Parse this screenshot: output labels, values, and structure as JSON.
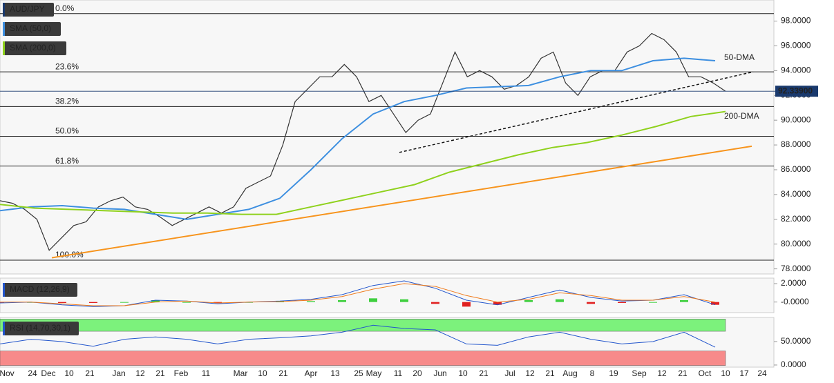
{
  "chart_data": {
    "type": "line",
    "legend": [
      "AUD/JPY",
      "SMA (50,0)",
      "SMA (200,0)"
    ],
    "ylim": [
      77.7,
      99.7
    ],
    "yticks": [
      {
        "value": 98,
        "label": "98.0000"
      },
      {
        "value": 96,
        "label": "96.0000"
      },
      {
        "value": 94,
        "label": "94.0000"
      },
      {
        "value": 92,
        "label": "92.0000"
      },
      {
        "value": 90,
        "label": "90.0000"
      },
      {
        "value": 88,
        "label": "88.0000"
      },
      {
        "value": 86,
        "label": "86.0000"
      },
      {
        "value": 84,
        "label": "84.0000"
      },
      {
        "value": 82,
        "label": "82.0000"
      },
      {
        "value": 80,
        "label": "80.0000"
      },
      {
        "value": 78,
        "label": "78.0000"
      }
    ],
    "xticks": [
      "Nov",
      "24",
      "Dec",
      "10",
      "21",
      "Jan",
      "12",
      "21",
      "Feb",
      "11",
      "Mar",
      "10",
      "21",
      "Apr",
      "13",
      "25",
      "May",
      "11",
      "20",
      "Jun",
      "10",
      "21",
      "Jul",
      "12",
      "21",
      "Aug",
      "8",
      "19",
      "Sep",
      "12",
      "21",
      "Oct",
      "10",
      "17",
      "24"
    ],
    "series": [
      {
        "name": "AUD/JPY",
        "color": "#333333",
        "values": [
          83.5,
          83.3,
          82.8,
          82.0,
          79.5,
          80.5,
          81.5,
          81.8,
          83.0,
          83.5,
          83.8,
          83.0,
          82.8,
          82.2,
          81.5,
          82.0,
          82.5,
          83.0,
          82.5,
          83.0,
          84.5,
          85.0,
          85.5,
          88.0,
          91.5,
          92.5,
          93.5,
          93.5,
          94.5,
          93.5,
          91.5,
          92.0,
          90.5,
          89.0,
          90.0,
          90.5,
          93.0,
          95.5,
          93.5,
          94.0,
          93.5,
          92.5,
          92.8,
          93.5,
          95.0,
          95.5,
          93.0,
          92.0,
          93.5,
          94.0,
          94.0,
          95.5,
          96.0,
          97.0,
          96.5,
          95.5,
          93.5,
          93.5,
          93.0,
          92.339
        ]
      },
      {
        "name": "50-DMA",
        "color": "#3d8fe0",
        "values": [
          82.7,
          83.0,
          83.1,
          82.9,
          82.8,
          82.4,
          82.0,
          82.4,
          82.8,
          83.7,
          86.0,
          88.5,
          90.5,
          91.5,
          92.0,
          92.6,
          92.7,
          92.8,
          93.5,
          94.0,
          94.0,
          94.8,
          95.0,
          94.8
        ]
      },
      {
        "name": "200-DMA",
        "color": "#8fd11d",
        "values": [
          83.2,
          82.9,
          82.8,
          82.7,
          82.6,
          82.5,
          82.5,
          82.4,
          82.4,
          83.0,
          83.6,
          84.2,
          84.8,
          85.8,
          86.5,
          87.2,
          87.8,
          88.2,
          88.8,
          89.5,
          90.3,
          90.7
        ]
      }
    ],
    "price_label": "92.33900",
    "trendlines": [
      {
        "color": "#f7941d",
        "values": [
          78.9,
          87.9
        ]
      },
      {
        "color": "#111111",
        "values": [
          87.4,
          93.9
        ]
      }
    ],
    "fib_levels": [
      {
        "label": "0.0%",
        "value": 98.6
      },
      {
        "label": "23.6%",
        "value": 93.9
      },
      {
        "label": "38.2%",
        "value": 91.1
      },
      {
        "label": "50.0%",
        "value": 88.7
      },
      {
        "label": "61.8%",
        "value": 86.3
      },
      {
        "label": "100.0%",
        "value": 78.7
      }
    ],
    "macd": {
      "label": "MACD (12,26,9)",
      "ylim": [
        -1.15,
        2.6
      ],
      "yticks": [
        {
          "value": 2,
          "label": "2.0000"
        },
        {
          "value": 0,
          "label": "-0.0000"
        }
      ],
      "macd": [
        -0.1,
        0,
        -0.3,
        -0.5,
        -0.4,
        0.2,
        0.1,
        -0.2,
        0,
        0.1,
        0.3,
        0.8,
        1.8,
        2.3,
        1.5,
        0.2,
        -0.3,
        0.5,
        1.3,
        0.5,
        0.1,
        0.2,
        0.8,
        -0.3
      ],
      "signal": [
        0,
        0,
        -0.2,
        -0.4,
        -0.4,
        0,
        0.1,
        -0.1,
        0,
        0.05,
        0.2,
        0.6,
        1.4,
        2.0,
        1.7,
        0.7,
        0,
        0.3,
        1.0,
        0.7,
        0.2,
        0.2,
        0.6,
        0.0
      ],
      "histogram": [
        -0.1,
        0,
        -0.1,
        -0.1,
        0,
        0.2,
        0,
        -0.1,
        0,
        0.05,
        0.1,
        0.2,
        0.4,
        0.3,
        -0.2,
        -0.5,
        -0.3,
        0.2,
        0.3,
        -0.2,
        -0.1,
        0,
        0.2,
        -0.3
      ]
    },
    "rsi": {
      "label": "RSI (14,70,30,1)",
      "ylim": [
        -4.5,
        101.5
      ],
      "yticks": [
        {
          "value": 50,
          "label": "50.0000"
        },
        {
          "value": 0,
          "label": "0.0000"
        }
      ],
      "overbought": [
        72,
        98
      ],
      "oversold": [
        -1,
        30
      ],
      "values": [
        45,
        55,
        50,
        40,
        55,
        60,
        55,
        45,
        55,
        58,
        62,
        70,
        85,
        78,
        75,
        45,
        42,
        60,
        70,
        55,
        45,
        50,
        70,
        38
      ]
    }
  }
}
